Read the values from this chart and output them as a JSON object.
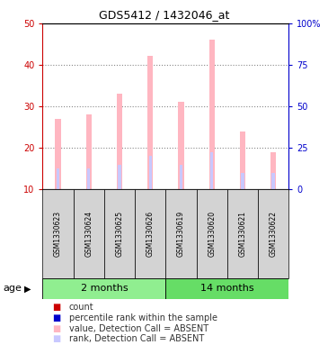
{
  "title": "GDS5412 / 1432046_at",
  "samples": [
    "GSM1330623",
    "GSM1330624",
    "GSM1330625",
    "GSM1330626",
    "GSM1330619",
    "GSM1330620",
    "GSM1330621",
    "GSM1330622"
  ],
  "group_labels": [
    "2 months",
    "14 months"
  ],
  "absent_values": [
    27,
    28,
    33,
    42,
    31,
    46,
    24,
    19
  ],
  "absent_ranks": [
    15,
    15,
    16,
    18,
    16,
    19,
    14,
    14
  ],
  "bar_bottom": 10,
  "ylim_left": [
    10,
    50
  ],
  "ylim_right": [
    0,
    100
  ],
  "yticks_left": [
    10,
    20,
    30,
    40,
    50
  ],
  "yticks_right": [
    0,
    25,
    50,
    75,
    100
  ],
  "ytick_labels_right": [
    "0",
    "25",
    "50",
    "75",
    "100%"
  ],
  "pink_bar_color": "#FFB6C1",
  "rank_bar_color": "#C8C8FF",
  "left_axis_color": "#CC0000",
  "right_axis_color": "#0000CC",
  "sample_box_color": "#D3D3D3",
  "group1_color": "#90EE90",
  "group2_color": "#66DD66",
  "legend_items": [
    {
      "color": "#CC0000",
      "label": "count"
    },
    {
      "color": "#0000CC",
      "label": "percentile rank within the sample"
    },
    {
      "color": "#FFB6C1",
      "label": "value, Detection Call = ABSENT"
    },
    {
      "color": "#C8C8FF",
      "label": "rank, Detection Call = ABSENT"
    }
  ]
}
